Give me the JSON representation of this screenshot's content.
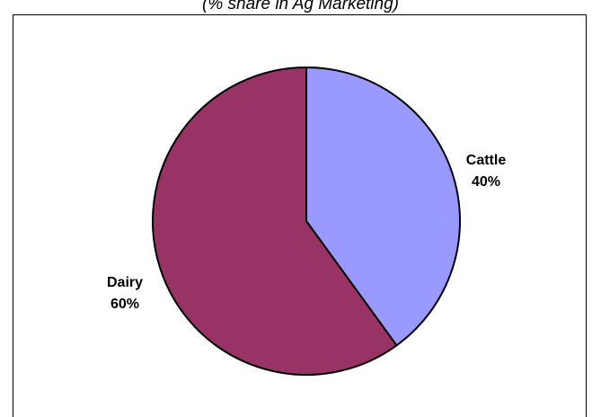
{
  "chart_data": {
    "type": "pie",
    "subtitle": "(% share in Ag Marketing)",
    "start_angle_deg": 0,
    "direction": "clockwise",
    "slices": [
      {
        "name": "Cattle",
        "value": 40,
        "label": "Cattle",
        "value_label": "40%",
        "color": "#9999FF"
      },
      {
        "name": "Dairy",
        "value": 60,
        "label": "Dairy",
        "value_label": "60%",
        "color": "#993366"
      }
    ],
    "slice_border_color": "#000000",
    "legend": "none"
  }
}
